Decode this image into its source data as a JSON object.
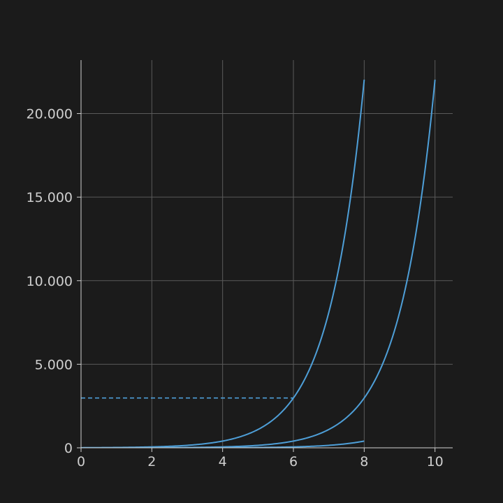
{
  "chart_data": {
    "type": "line",
    "title": "",
    "xlabel": "",
    "ylabel": "",
    "xlim": [
      0,
      10.5
    ],
    "ylim": [
      0,
      23200
    ],
    "x_ticks": [
      0,
      2,
      4,
      6,
      8,
      10
    ],
    "y_ticks": [
      0,
      5000,
      10000,
      15000,
      20000
    ],
    "x_tick_labels": [
      "0",
      "2",
      "4",
      "6",
      "8",
      "10"
    ],
    "y_tick_labels": [
      "0",
      "5.000",
      "10.000",
      "15.000",
      "20.000"
    ],
    "grid": true,
    "line_color": "#4e9fd8",
    "series": [
      {
        "function": "e^(x-2)",
        "x": [
          0,
          2,
          3,
          4,
          5,
          6,
          7,
          7.5,
          8
        ],
        "y": [
          0.14,
          1,
          2.7,
          7.4,
          20,
          55,
          148,
          245,
          403
        ]
      },
      {
        "function": "e^x",
        "x": [
          0,
          2,
          4,
          5,
          6,
          7,
          8,
          8.5,
          9,
          9.5,
          10
        ],
        "y": [
          1,
          7.4,
          55,
          148,
          403,
          1097,
          2981,
          4915,
          8103,
          13360,
          22026
        ]
      },
      {
        "function": "e^(x+2)",
        "x": [
          0,
          2,
          3,
          4,
          5,
          6,
          6.5,
          7,
          7.5,
          8
        ],
        "y": [
          7.4,
          55,
          148,
          403,
          1097,
          2981,
          4915,
          8103,
          13360,
          22026
        ]
      }
    ],
    "reference_line": {
      "style": "dashed",
      "x": [
        0,
        6
      ],
      "y": 2981
    }
  }
}
